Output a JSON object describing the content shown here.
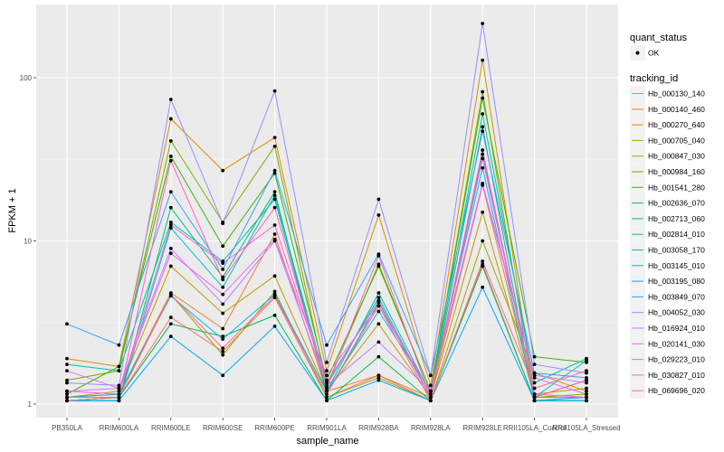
{
  "chart_data": {
    "type": "line",
    "title": "",
    "xlabel": "sample_name",
    "ylabel": "FPKM + 1",
    "yscale": "log10",
    "ylim": [
      0.92,
      260
    ],
    "yticks": [
      1,
      10,
      100
    ],
    "ytick_labels": [
      "1",
      "10",
      "100"
    ],
    "grid": true,
    "categories": [
      "PB350LA",
      "RRIM600LA",
      "RRIM600LE",
      "RRIM600SE",
      "RRIM600PE",
      "RRIM901LA",
      "RRIM928BA",
      "RRIM928LA",
      "RRIM928LE",
      "RRII105LA_Control",
      "RRII105LA_Stressed"
    ],
    "point_legend": {
      "title": "quant_status",
      "entries": [
        "OK"
      ]
    },
    "legend": {
      "title": "tracking_id",
      "position": "right"
    },
    "series": [
      {
        "name": "Hb_000130_140",
        "color": "#F8766D",
        "values": [
          1.05,
          1.1,
          3.4,
          2.1,
          4.5,
          1.1,
          1.5,
          1.05,
          7.2,
          1.05,
          1.1
        ]
      },
      {
        "name": "Hb_000140_460",
        "color": "#EA8331",
        "values": [
          1.1,
          1.15,
          4.8,
          2.9,
          11,
          1.2,
          1.5,
          1.1,
          22,
          1.1,
          1.4
        ]
      },
      {
        "name": "Hb_000270_640",
        "color": "#D89000",
        "values": [
          1.9,
          1.7,
          56,
          27,
          43,
          1.6,
          14.4,
          1.3,
          128,
          1.15,
          1.25
        ]
      },
      {
        "name": "Hb_000705_040",
        "color": "#C09B00",
        "values": [
          1.1,
          1.2,
          7,
          3.6,
          6.1,
          1.2,
          3.1,
          1.1,
          15,
          1.1,
          1.1
        ]
      },
      {
        "name": "Hb_000847_030",
        "color": "#A3A500",
        "values": [
          1.05,
          1.1,
          4.7,
          2.0,
          4.9,
          1.1,
          1.45,
          1.05,
          10,
          1.55,
          1.2
        ]
      },
      {
        "name": "Hb_000984_160",
        "color": "#7CAE00",
        "values": [
          1.4,
          1.6,
          41,
          13,
          38,
          1.3,
          7.2,
          1.2,
          82,
          1.1,
          1.15
        ]
      },
      {
        "name": "Hb_001541_280",
        "color": "#39B600",
        "values": [
          1.15,
          1.7,
          33,
          9.3,
          26,
          1.4,
          7,
          1.2,
          75,
          1.95,
          1.8
        ]
      },
      {
        "name": "Hb_002636_070",
        "color": "#00BB4E",
        "values": [
          1.05,
          1.1,
          3.1,
          2.6,
          3.5,
          1.05,
          1.95,
          1.05,
          7,
          1.05,
          1.05
        ]
      },
      {
        "name": "Hb_002713_060",
        "color": "#00BF7D",
        "values": [
          1.05,
          1.05,
          16,
          6,
          20,
          1.15,
          4.2,
          1.1,
          50,
          1.05,
          1.05
        ]
      },
      {
        "name": "Hb_002814_010",
        "color": "#00C1A3",
        "values": [
          1.75,
          1.6,
          13,
          7.5,
          18,
          1.2,
          4.8,
          1.15,
          60,
          1.35,
          1.9
        ]
      },
      {
        "name": "Hb_003058_170",
        "color": "#00BFC4",
        "values": [
          1.05,
          1.05,
          12,
          5.2,
          19,
          1.3,
          4.5,
          1.1,
          34,
          1.1,
          1.85
        ]
      },
      {
        "name": "Hb_003145_010",
        "color": "#00B8E7",
        "values": [
          1.1,
          1.15,
          4.6,
          2.5,
          4.7,
          1.2,
          3.7,
          1.2,
          28,
          1.05,
          1.05
        ]
      },
      {
        "name": "Hb_003195_080",
        "color": "#00A9FF",
        "values": [
          1.05,
          1.05,
          2.6,
          1.5,
          3.0,
          1.05,
          1.4,
          1.05,
          5.2,
          1.05,
          1.1
        ]
      },
      {
        "name": "Hb_003849_070",
        "color": "#35A2FF",
        "values": [
          3.1,
          2.3,
          20,
          6.7,
          27,
          2.3,
          8.3,
          1.5,
          47,
          1.55,
          1.45
        ]
      },
      {
        "name": "Hb_004052_030",
        "color": "#9590FF",
        "values": [
          1.35,
          1.3,
          73.6,
          12.8,
          83,
          1.8,
          18,
          1.5,
          215,
          1.75,
          1.55
        ]
      },
      {
        "name": "Hb_016924_010",
        "color": "#C77CFF",
        "values": [
          1.2,
          1.25,
          9,
          4.1,
          10,
          1.3,
          2.4,
          1.2,
          22.5,
          1.5,
          1.35
        ]
      },
      {
        "name": "Hb_020141_030",
        "color": "#E76BF3",
        "values": [
          1.6,
          1.25,
          8.4,
          4.7,
          10.2,
          1.5,
          4,
          1.2,
          22,
          1.45,
          1.15
        ]
      },
      {
        "name": "Hb_029223_010",
        "color": "#FA62DB",
        "values": [
          1.2,
          1.15,
          12.5,
          7.3,
          12.5,
          1.35,
          4.3,
          1.1,
          32,
          1.15,
          1.1
        ]
      },
      {
        "name": "Hb_030827_010",
        "color": "#FF62BC",
        "values": [
          1.1,
          1.1,
          31,
          5.8,
          16,
          1.25,
          8.1,
          1.1,
          36,
          1.1,
          1.4
        ]
      },
      {
        "name": "Hb_069696_020",
        "color": "#FF6C91",
        "values": [
          1.05,
          1.1,
          4.7,
          2.2,
          4.6,
          1.15,
          4.0,
          1.05,
          7.5,
          1.25,
          1.6
        ]
      }
    ]
  }
}
